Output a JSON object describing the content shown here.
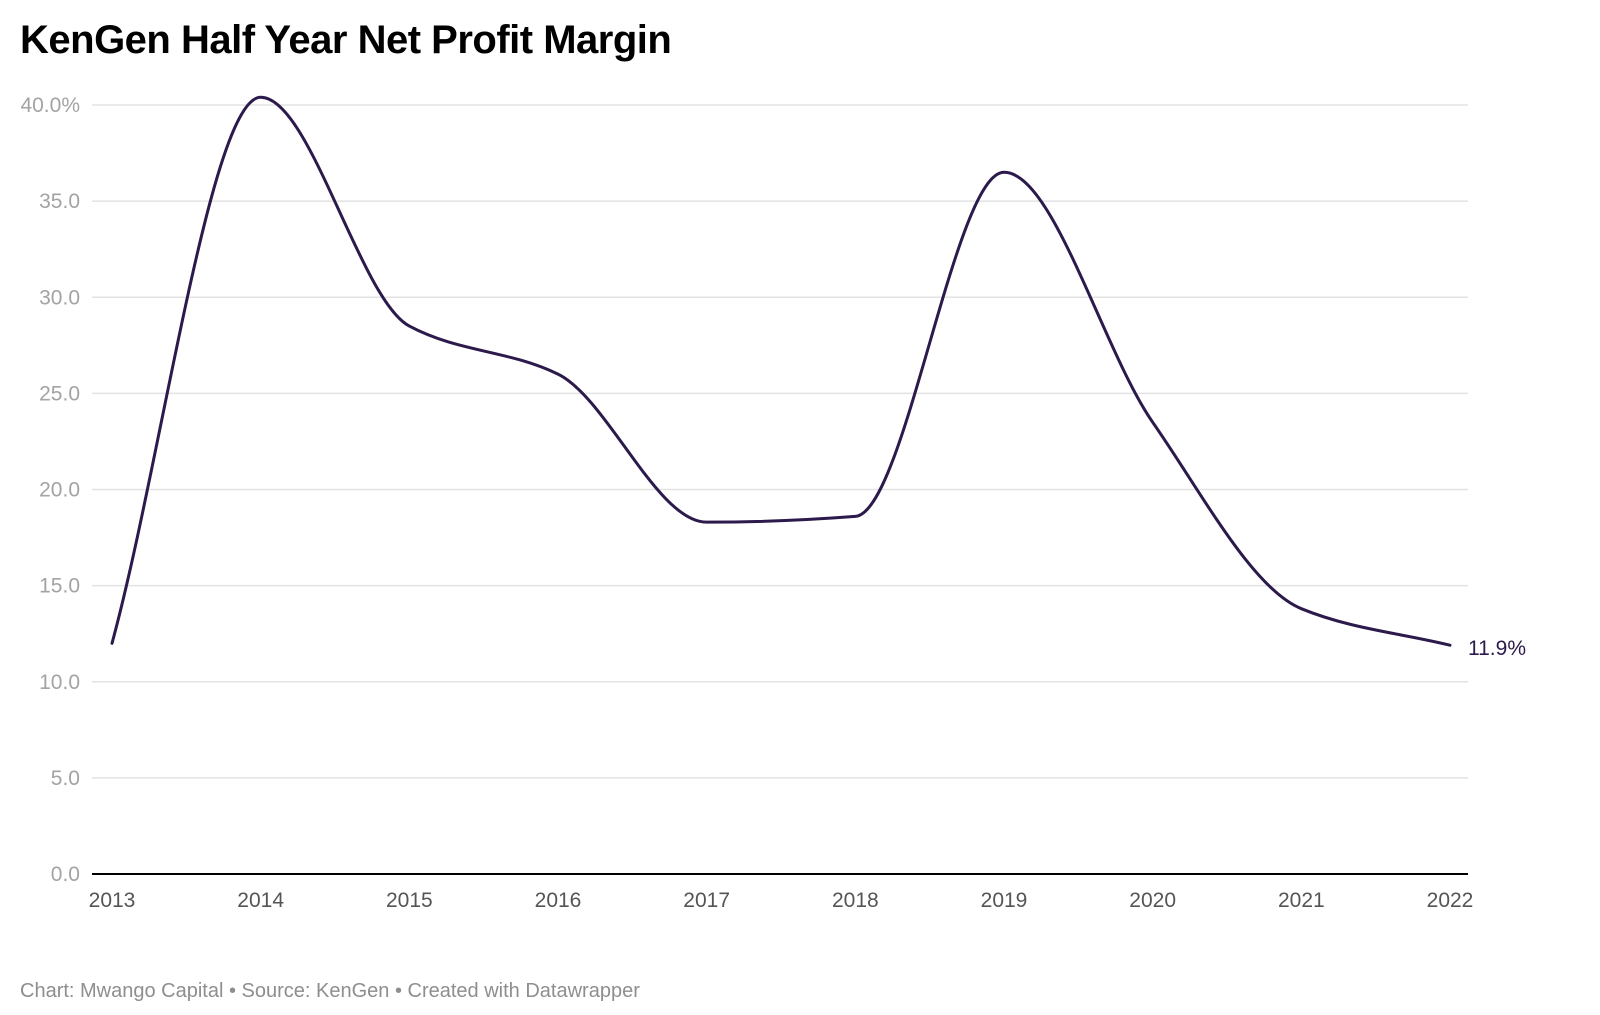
{
  "chart_data": {
    "type": "line",
    "title": "KenGen Half Year Net Profit Margin",
    "x": [
      "2013",
      "2014",
      "2015",
      "2016",
      "2017",
      "2018",
      "2019",
      "2020",
      "2021",
      "2022"
    ],
    "series": [
      {
        "values": [
          12.0,
          40.4,
          28.5,
          26.0,
          18.3,
          18.6,
          36.5,
          23.5,
          13.8,
          11.9
        ]
      }
    ],
    "y_ticks": [
      "0.0",
      "5.0",
      "10.0",
      "15.0",
      "20.0",
      "25.0",
      "30.0",
      "35.0",
      "40.0%"
    ],
    "ylim": [
      0,
      40
    ],
    "grid": true,
    "end_label": "11.9%",
    "line_color": "#2b1a4b",
    "grid_color": "#e3e3e3",
    "axis_color": "#000000"
  },
  "footer": {
    "credit": "Chart: Mwango Capital • Source: KenGen • Created with Datawrapper"
  }
}
